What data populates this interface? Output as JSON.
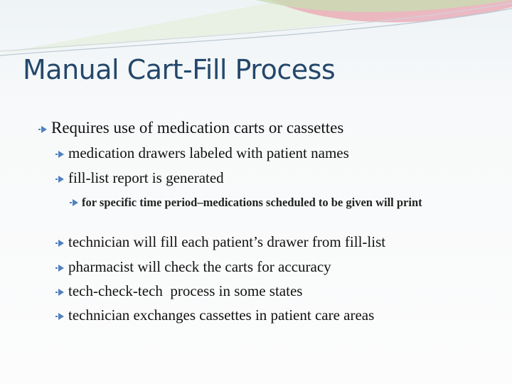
{
  "title": "Manual Cart-Fill Process",
  "bullets": [
    {
      "text": "Requires use of medication carts or cassettes",
      "children": [
        {
          "text": "medication drawers labeled with patient names"
        },
        {
          "text": "fill-list report is generated",
          "children": [
            {
              "text": "for specific time period–medications scheduled to be given will print"
            }
          ]
        },
        {
          "text": "technician will fill each patient’s drawer from fill-list"
        },
        {
          "text": "pharmacist will check the carts for accuracy"
        },
        {
          "text": "tech-check-tech  process in some states"
        },
        {
          "text": "technician exchanges cassettes in patient care areas"
        }
      ]
    }
  ]
}
